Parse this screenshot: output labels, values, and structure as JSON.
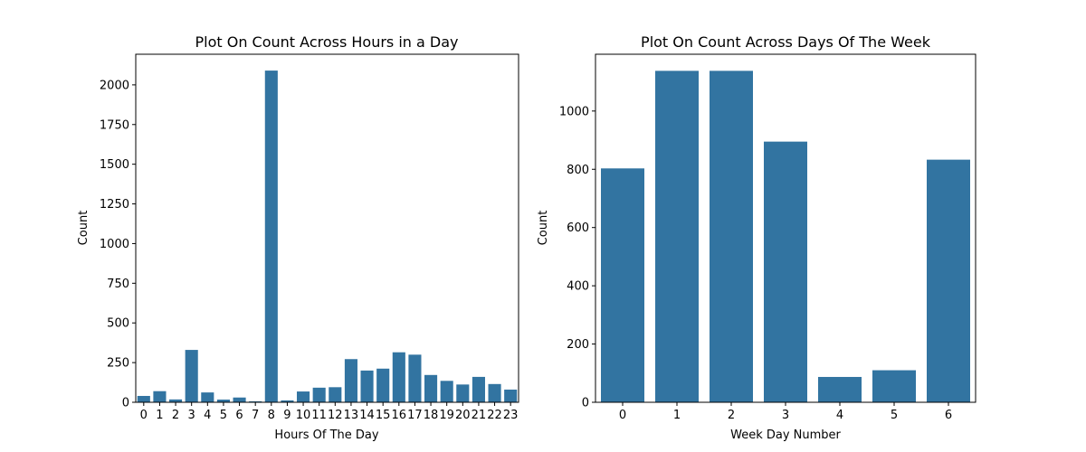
{
  "chart_data": [
    {
      "type": "bar",
      "title": "Plot On Count Across Hours in a Day",
      "xlabel": "Hours Of The Day",
      "ylabel": "Count",
      "categories": [
        "0",
        "1",
        "2",
        "3",
        "4",
        "5",
        "6",
        "7",
        "8",
        "9",
        "10",
        "11",
        "12",
        "13",
        "14",
        "15",
        "16",
        "17",
        "18",
        "19",
        "20",
        "21",
        "22",
        "23"
      ],
      "values": [
        40,
        70,
        18,
        330,
        62,
        17,
        30,
        6,
        2090,
        12,
        68,
        92,
        95,
        272,
        200,
        212,
        315,
        300,
        172,
        135,
        112,
        160,
        115,
        80
      ],
      "ylim": [
        0,
        2193
      ],
      "yticks": [
        0,
        250,
        500,
        750,
        1000,
        1250,
        1500,
        1750,
        2000
      ],
      "ytick_labels": [
        "0",
        "250",
        "500",
        "750",
        "1000",
        "1250",
        "1500",
        "1750",
        "2000"
      ],
      "color": "#3274a1",
      "grid": false
    },
    {
      "type": "bar",
      "title": "Plot On Count Across Days Of The Week",
      "xlabel": "Week Day Number",
      "ylabel": "Count",
      "categories": [
        "0",
        "1",
        "2",
        "3",
        "4",
        "5",
        "6"
      ],
      "values": [
        803,
        1138,
        1138,
        895,
        87,
        110,
        833
      ],
      "ylim": [
        0,
        1195
      ],
      "yticks": [
        0,
        200,
        400,
        600,
        800,
        1000
      ],
      "ytick_labels": [
        "0",
        "200",
        "400",
        "600",
        "800",
        "1000"
      ],
      "color": "#3274a1",
      "grid": false
    }
  ]
}
